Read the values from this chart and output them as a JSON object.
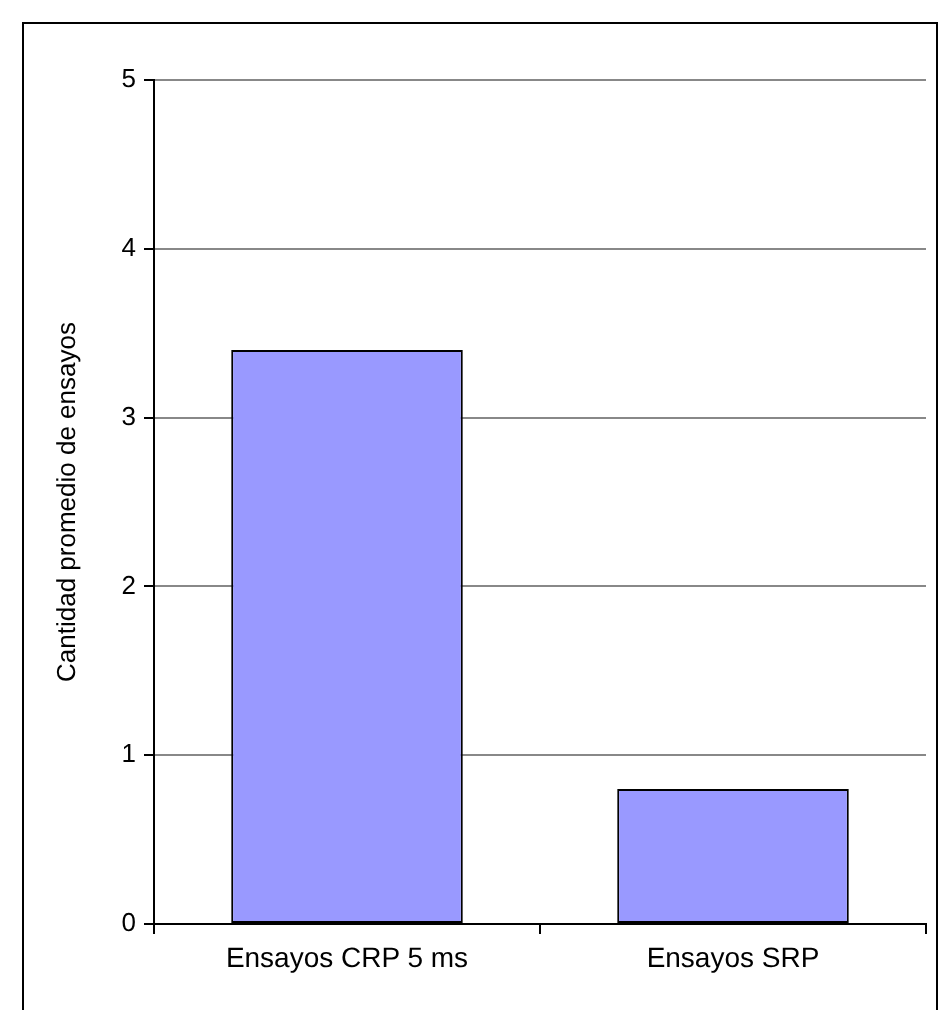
{
  "chart_data": {
    "type": "bar",
    "ylabel": "Cantidad promedio de ensayos",
    "categories": [
      "Ensayos CRP 5 ms",
      "Ensayos SRP"
    ],
    "values": [
      3.4,
      0.8
    ],
    "color": "#9999ff",
    "ylim": [
      0,
      5
    ],
    "yticks": [
      0,
      1,
      2,
      3,
      4,
      5
    ],
    "grid": "y"
  }
}
